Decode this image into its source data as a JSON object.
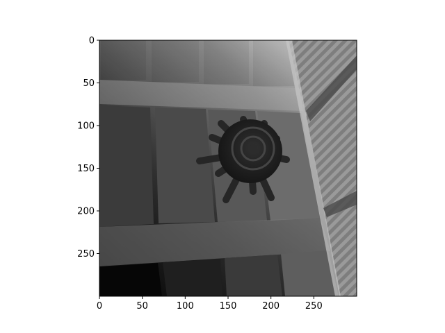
{
  "figure": {
    "background": "#ffffff",
    "colormap": "gray",
    "image_size": [
      300,
      300
    ]
  },
  "axes": {
    "xlim": [
      0,
      300
    ],
    "ylim": [
      300,
      0
    ],
    "x_ticks": [
      0,
      50,
      100,
      150,
      200,
      250
    ],
    "y_ticks": [
      0,
      50,
      100,
      150,
      200,
      250
    ],
    "x_tick_labels": [
      "0",
      "50",
      "100",
      "150",
      "200",
      "250"
    ],
    "y_tick_labels": [
      "0",
      "50",
      "100",
      "150",
      "200",
      "250"
    ],
    "grid": false
  }
}
